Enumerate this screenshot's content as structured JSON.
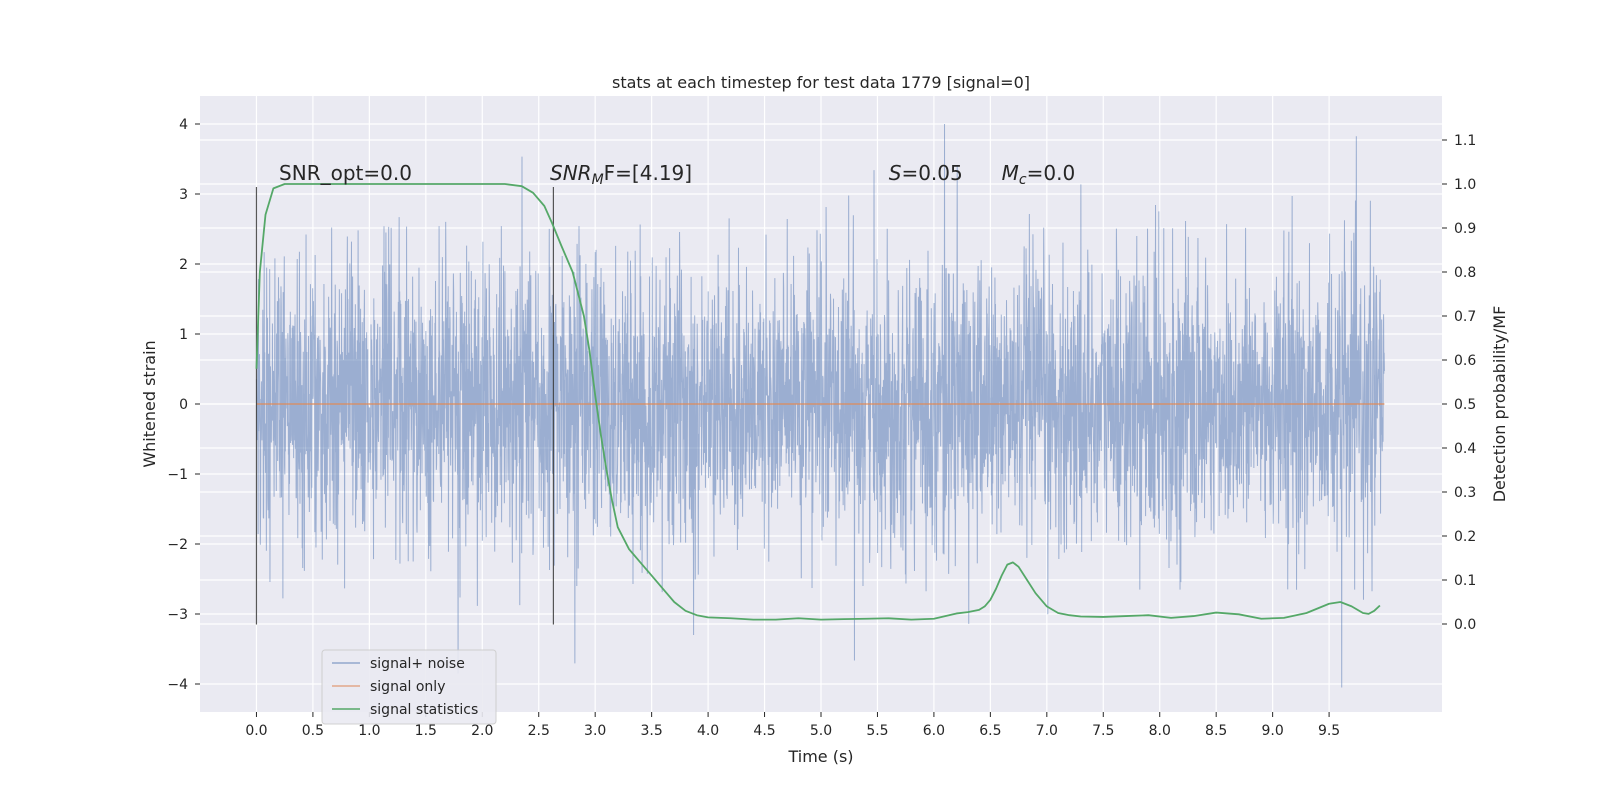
{
  "chart_data": {
    "type": "line",
    "title": "stats at each timestep for test data 1779 [signal=0]",
    "xlabel": "Time (s)",
    "ylabel": "Whitened strain",
    "ylabel_right": "Detection probability/MF",
    "xlim": [
      -0.5,
      10.5
    ],
    "ylim": [
      -4.4,
      4.4
    ],
    "ylim_right": [
      -0.2,
      1.2
    ],
    "x_ticks": [
      0.0,
      0.5,
      1.0,
      1.5,
      2.0,
      2.5,
      3.0,
      3.5,
      4.0,
      4.5,
      5.0,
      5.5,
      6.0,
      6.5,
      7.0,
      7.5,
      8.0,
      8.5,
      9.0,
      9.5
    ],
    "x_tick_labels": [
      "0.0",
      "0.5",
      "1.0",
      "1.5",
      "2.0",
      "2.5",
      "3.0",
      "3.5",
      "4.0",
      "4.5",
      "5.0",
      "5.5",
      "6.0",
      "6.5",
      "7.0",
      "7.5",
      "8.0",
      "8.5",
      "9.0",
      "9.5"
    ],
    "y_ticks": [
      -4,
      -3,
      -2,
      -1,
      0,
      1,
      2,
      3,
      4
    ],
    "y_tick_labels": [
      "−4",
      "−3",
      "−2",
      "−1",
      "0",
      "1",
      "2",
      "3",
      "4"
    ],
    "y_right_ticks": [
      0.0,
      0.1,
      0.2,
      0.3,
      0.4,
      0.5,
      0.6,
      0.7,
      0.8,
      0.9,
      1.0,
      1.1
    ],
    "y_right_tick_labels": [
      "0.0",
      "0.1",
      "0.2",
      "0.3",
      "0.4",
      "0.5",
      "0.6",
      "0.7",
      "0.8",
      "0.9",
      "1.0",
      "1.1"
    ],
    "grid": true,
    "legend_position": "lower-left",
    "series": [
      {
        "name": "signal+ noise",
        "color": "#4c72b0",
        "kind": "noise",
        "x_range": [
          0.0,
          9.99
        ],
        "amplitude_std": 1.0,
        "peak_max": 4.0,
        "peak_min": -4.05
      },
      {
        "name": "signal only",
        "color": "#dd8452",
        "kind": "line",
        "x": [
          0.0,
          9.99
        ],
        "y": [
          0.0,
          0.0
        ]
      },
      {
        "name": "signal statistics",
        "color": "#55a868",
        "kind": "line",
        "axis": "right",
        "x": [
          0.0,
          0.03,
          0.08,
          0.15,
          0.25,
          0.4,
          0.6,
          1.0,
          1.5,
          2.0,
          2.2,
          2.35,
          2.45,
          2.55,
          2.62,
          2.7,
          2.8,
          2.9,
          2.95,
          3.0,
          3.05,
          3.1,
          3.15,
          3.2,
          3.3,
          3.4,
          3.5,
          3.6,
          3.7,
          3.8,
          3.9,
          4.0,
          4.2,
          4.4,
          4.6,
          4.8,
          5.0,
          5.2,
          5.4,
          5.6,
          5.8,
          6.0,
          6.1,
          6.2,
          6.3,
          6.4,
          6.45,
          6.5,
          6.55,
          6.6,
          6.65,
          6.7,
          6.75,
          6.8,
          6.9,
          7.0,
          7.1,
          7.2,
          7.3,
          7.5,
          7.7,
          7.9,
          8.1,
          8.3,
          8.5,
          8.7,
          8.9,
          9.1,
          9.3,
          9.5,
          9.6,
          9.7,
          9.8,
          9.85,
          9.9,
          9.95
        ],
        "y": [
          0.58,
          0.8,
          0.93,
          0.99,
          1.0,
          1.0,
          1.0,
          1.0,
          1.0,
          1.0,
          1.0,
          0.995,
          0.98,
          0.95,
          0.91,
          0.86,
          0.8,
          0.7,
          0.62,
          0.52,
          0.43,
          0.35,
          0.28,
          0.22,
          0.17,
          0.14,
          0.11,
          0.08,
          0.05,
          0.03,
          0.02,
          0.015,
          0.013,
          0.01,
          0.01,
          0.013,
          0.01,
          0.011,
          0.012,
          0.013,
          0.01,
          0.012,
          0.018,
          0.024,
          0.027,
          0.032,
          0.04,
          0.055,
          0.08,
          0.11,
          0.135,
          0.14,
          0.13,
          0.11,
          0.07,
          0.04,
          0.025,
          0.02,
          0.017,
          0.016,
          0.018,
          0.02,
          0.014,
          0.018,
          0.026,
          0.022,
          0.012,
          0.014,
          0.025,
          0.046,
          0.05,
          0.04,
          0.025,
          0.023,
          0.03,
          0.042
        ]
      }
    ],
    "vertical_lines": [
      {
        "x": 0.0,
        "y_range": [
          -3.15,
          3.1
        ]
      },
      {
        "x": 2.63,
        "y_range": [
          -3.15,
          3.1
        ]
      }
    ],
    "annotations": [
      {
        "x": 0.2,
        "y": 3.2,
        "text": "SNR_opt=0.0"
      },
      {
        "x": 2.6,
        "y": 3.2,
        "text_main": "SNR",
        "text_sub": "M",
        "text_rest": "F=[4.19]"
      },
      {
        "x": 5.6,
        "y": 3.2,
        "text_main": "S",
        "text_rest": "=0.05"
      },
      {
        "x": 6.6,
        "y": 3.2,
        "text_main": "M",
        "text_sub": "c",
        "text_rest": "=0.0"
      }
    ]
  }
}
